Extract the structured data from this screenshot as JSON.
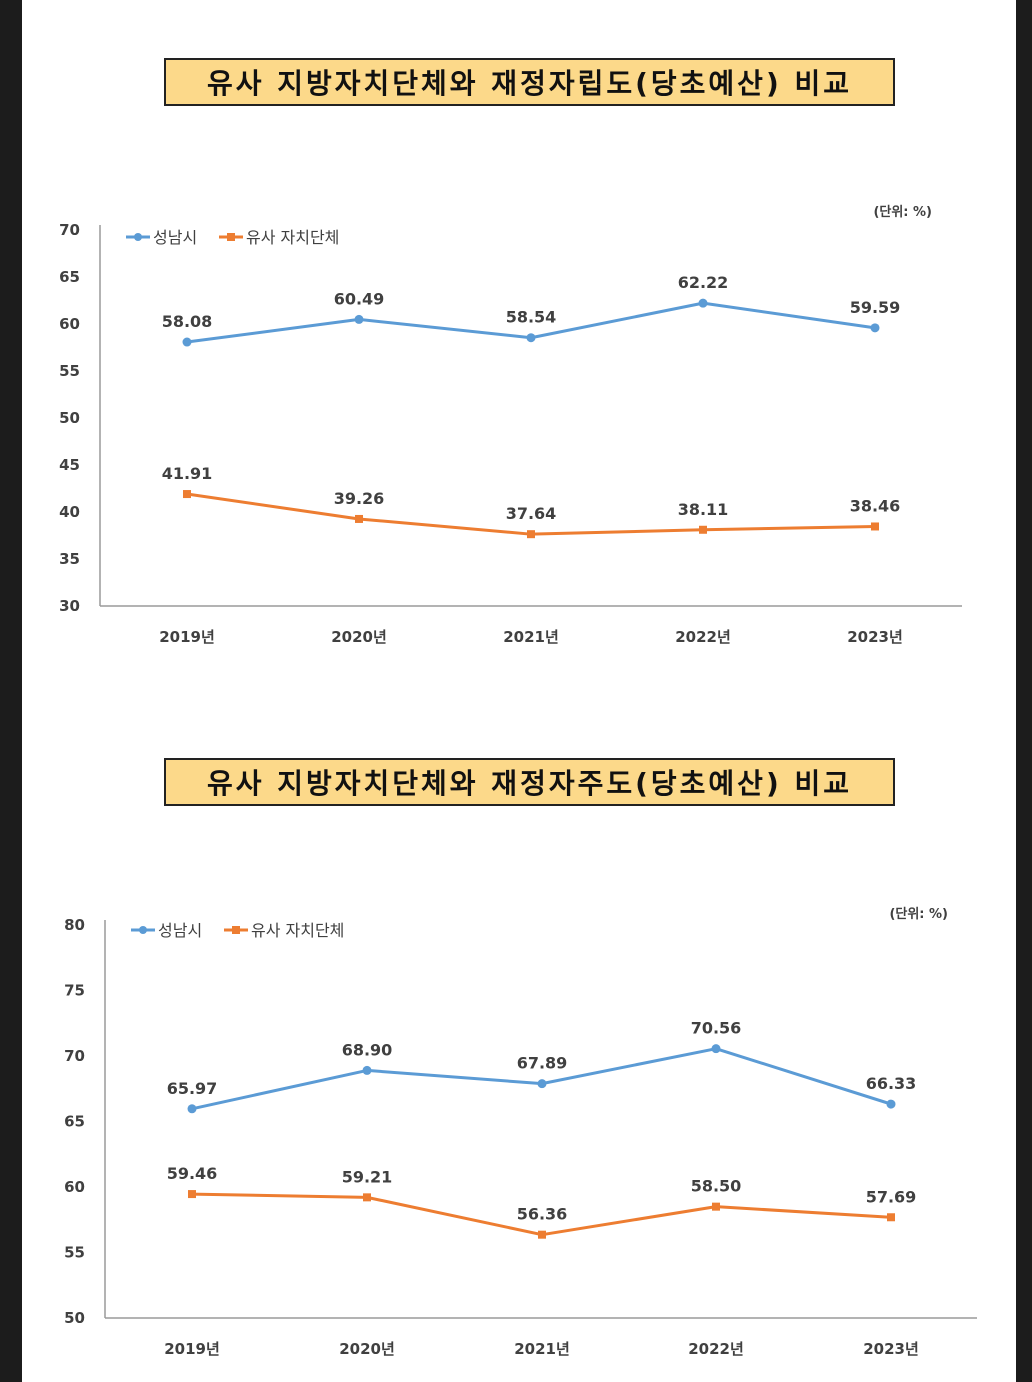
{
  "titles": [
    "유사 지방자치단체와 재정자립도(당초예산) 비교",
    "유사 지방자치단체와 재정자주도(당초예산) 비교"
  ],
  "chart_data": [
    {
      "type": "line",
      "title": "유사 지방자치단체와 재정자립도(당초예산) 비교",
      "unit": "(단위: %)",
      "categories": [
        "2019년",
        "2020년",
        "2021년",
        "2022년",
        "2023년"
      ],
      "series": [
        {
          "name": "성남시",
          "values": [
            58.08,
            60.49,
            58.54,
            62.22,
            59.59
          ],
          "color": "#5b9bd5"
        },
        {
          "name": "유사 자치단체",
          "values": [
            41.91,
            39.26,
            37.64,
            38.11,
            38.46
          ],
          "color": "#ed7d31"
        }
      ],
      "ylim": [
        30,
        70
      ],
      "yticks": [
        30,
        35,
        40,
        45,
        50,
        55,
        60,
        65,
        70
      ],
      "legend": "top-left",
      "grid": false
    },
    {
      "type": "line",
      "title": "유사 지방자치단체와 재정자주도(당초예산) 비교",
      "unit": "(단위: %)",
      "categories": [
        "2019년",
        "2020년",
        "2021년",
        "2022년",
        "2023년"
      ],
      "series": [
        {
          "name": "성남시",
          "values": [
            65.97,
            68.9,
            67.89,
            70.56,
            66.33
          ],
          "color": "#5b9bd5"
        },
        {
          "name": "유사 자치단체",
          "values": [
            59.46,
            59.21,
            56.36,
            58.5,
            57.69
          ],
          "color": "#ed7d31"
        }
      ],
      "ylim": [
        50,
        80
      ],
      "yticks": [
        50,
        55,
        60,
        65,
        70,
        75,
        80
      ],
      "legend": "top-left",
      "grid": false
    }
  ]
}
